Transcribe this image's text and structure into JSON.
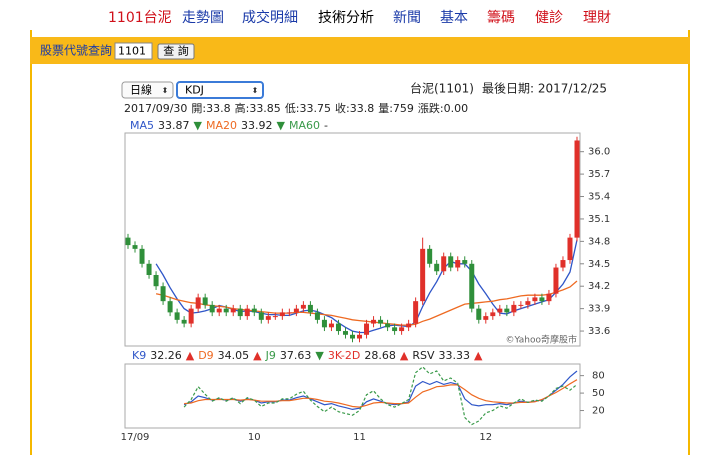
{
  "nav": {
    "stock": "1101台泥",
    "items": [
      "走勢圖",
      "成交明細",
      "技術分析",
      "新聞",
      "基本",
      "籌碼",
      "健診",
      "理財"
    ],
    "active": 2
  },
  "search": {
    "label": "股票代號查詢",
    "input": "1101",
    "button": "查 詢"
  },
  "controls": {
    "period": "日線",
    "indicator": "KDJ",
    "stock_name": "台泥(1101)",
    "last_date": "最後日期: 2017/12/25"
  },
  "chart_data": [
    {
      "type": "candlestick",
      "ohlc_header": [
        "2017/09/30",
        "開:33.8",
        "高:33.85",
        "低:33.75",
        "收:33.8",
        "量:759",
        "漲跌:0.00"
      ],
      "watermark": "©Yahoo奇摩股市",
      "up_color": "#e0302a",
      "down_color": "#2f8f3a",
      "open": [
        34.85,
        34.75,
        34.7,
        34.5,
        34.35,
        34.2,
        34.0,
        33.85,
        33.75,
        33.7,
        33.9,
        34.05,
        33.95,
        33.85,
        33.9,
        33.85,
        33.9,
        33.8,
        33.9,
        33.85,
        33.75,
        33.8,
        33.8,
        33.85,
        33.85,
        33.9,
        33.95,
        33.85,
        33.75,
        33.65,
        33.7,
        33.6,
        33.55,
        33.5,
        33.55,
        33.7,
        33.75,
        33.7,
        33.65,
        33.6,
        33.65,
        33.7,
        34.0,
        34.7,
        34.5,
        34.4,
        34.6,
        34.45,
        34.55,
        34.5,
        33.9,
        33.75,
        33.8,
        33.85,
        33.9,
        33.85,
        33.95,
        33.95,
        34.0,
        34.05,
        34.0,
        34.1,
        34.45,
        34.55,
        34.85
      ],
      "high": [
        34.9,
        34.8,
        34.75,
        34.55,
        34.4,
        34.25,
        34.05,
        33.9,
        33.8,
        33.95,
        34.1,
        34.1,
        34.0,
        33.95,
        33.95,
        33.95,
        33.95,
        33.95,
        33.95,
        33.9,
        33.85,
        33.85,
        33.9,
        33.9,
        33.95,
        34.0,
        34.0,
        33.9,
        33.8,
        33.75,
        33.75,
        33.65,
        33.6,
        33.6,
        33.75,
        33.8,
        33.8,
        33.75,
        33.7,
        33.7,
        33.75,
        34.05,
        34.85,
        34.75,
        34.55,
        34.65,
        34.65,
        34.6,
        34.6,
        34.55,
        33.95,
        33.85,
        33.9,
        33.95,
        33.95,
        34.0,
        34.0,
        34.05,
        34.1,
        34.1,
        34.15,
        34.5,
        34.6,
        34.9,
        36.2
      ],
      "low": [
        34.7,
        34.65,
        34.45,
        34.3,
        34.15,
        33.95,
        33.8,
        33.7,
        33.65,
        33.65,
        33.85,
        33.9,
        33.8,
        33.8,
        33.8,
        33.8,
        33.75,
        33.75,
        33.8,
        33.7,
        33.7,
        33.75,
        33.75,
        33.8,
        33.8,
        33.85,
        33.8,
        33.7,
        33.6,
        33.6,
        33.55,
        33.5,
        33.45,
        33.45,
        33.5,
        33.65,
        33.65,
        33.6,
        33.55,
        33.55,
        33.6,
        33.65,
        33.95,
        34.45,
        34.35,
        34.35,
        34.4,
        34.4,
        34.45,
        33.85,
        33.7,
        33.7,
        33.75,
        33.8,
        33.8,
        33.8,
        33.9,
        33.9,
        33.95,
        33.95,
        33.95,
        34.05,
        34.4,
        34.5,
        34.8
      ],
      "close": [
        34.75,
        34.7,
        34.5,
        34.35,
        34.2,
        34.0,
        33.85,
        33.75,
        33.7,
        33.9,
        34.05,
        33.95,
        33.85,
        33.9,
        33.85,
        33.9,
        33.8,
        33.9,
        33.85,
        33.75,
        33.8,
        33.8,
        33.85,
        33.85,
        33.9,
        33.95,
        33.85,
        33.75,
        33.65,
        33.7,
        33.6,
        33.55,
        33.5,
        33.55,
        33.7,
        33.75,
        33.7,
        33.65,
        33.6,
        33.65,
        33.7,
        34.0,
        34.7,
        34.5,
        34.4,
        34.6,
        34.45,
        34.55,
        34.5,
        33.9,
        33.75,
        33.8,
        33.85,
        33.9,
        33.85,
        33.95,
        33.95,
        34.0,
        34.05,
        34.0,
        34.1,
        34.45,
        34.55,
        34.85,
        36.15
      ],
      "series": [
        {
          "name": "MA5",
          "color": "#2f56c8",
          "legend_value": "33.87",
          "legend_arrow": "▼",
          "values": [
            null,
            null,
            null,
            null,
            34.5,
            34.35,
            34.18,
            34.03,
            33.9,
            33.84,
            33.85,
            33.87,
            33.9,
            33.94,
            33.92,
            33.89,
            33.86,
            33.87,
            33.86,
            33.84,
            33.82,
            33.82,
            33.81,
            33.81,
            33.84,
            33.87,
            33.88,
            33.86,
            33.82,
            33.78,
            33.71,
            33.65,
            33.6,
            33.58,
            33.58,
            33.61,
            33.64,
            33.67,
            33.68,
            33.67,
            33.66,
            33.72,
            33.93,
            34.11,
            34.26,
            34.44,
            34.53,
            34.5,
            34.5,
            34.4,
            34.23,
            34.1,
            33.96,
            33.84,
            33.83,
            33.87,
            33.9,
            33.93,
            33.96,
            33.99,
            34.02,
            34.12,
            34.23,
            34.39,
            34.82
          ]
        },
        {
          "name": "MA20",
          "color": "#ee6a22",
          "legend_value": "33.92",
          "legend_arrow": "▼",
          "values": [
            null,
            null,
            null,
            null,
            34.1,
            34.08,
            34.05,
            34.02,
            34.0,
            33.98,
            33.97,
            33.95,
            33.94,
            33.93,
            33.92,
            33.9,
            33.89,
            33.88,
            33.87,
            33.86,
            33.85,
            33.84,
            33.84,
            33.84,
            33.85,
            33.85,
            33.84,
            33.83,
            33.82,
            33.81,
            33.79,
            33.77,
            33.75,
            33.74,
            33.73,
            33.72,
            33.71,
            33.7,
            33.69,
            33.68,
            33.68,
            33.69,
            33.73,
            33.76,
            33.8,
            33.84,
            33.88,
            33.92,
            33.96,
            33.97,
            33.98,
            33.99,
            34.0,
            34.02,
            34.03,
            34.05,
            34.07,
            34.08,
            34.08,
            34.08,
            34.09,
            34.12,
            34.15,
            34.19,
            34.27
          ]
        },
        {
          "name": "MA60",
          "color": "#3a9a4a",
          "legend_value": "-"
        }
      ],
      "ylim": [
        33.4,
        36.25
      ],
      "yticks": [
        33.6,
        33.9,
        34.2,
        34.5,
        34.8,
        35.1,
        35.4,
        35.7,
        {
          "value": 36.0,
          "label": "36.0"
        }
      ]
    },
    {
      "type": "line",
      "categories": [
        null,
        "17/09",
        null,
        null,
        null,
        null,
        null,
        null,
        null,
        null,
        null,
        null,
        null,
        null,
        null,
        null,
        null,
        null,
        "10",
        null,
        null,
        null,
        null,
        null,
        null,
        null,
        null,
        null,
        null,
        null,
        null,
        null,
        null,
        "11",
        null,
        null,
        null,
        null,
        null,
        null,
        null,
        null,
        null,
        null,
        null,
        null,
        null,
        null,
        null,
        null,
        null,
        "12",
        null,
        null,
        null,
        null,
        null,
        null,
        null,
        null,
        null,
        null,
        null,
        null,
        null
      ],
      "series": [
        {
          "name": "K9",
          "color": "#2f56c8",
          "legend_value": "32.26",
          "legend_arrow": "▲",
          "values": [
            null,
            null,
            null,
            null,
            null,
            null,
            null,
            null,
            30,
            35,
            45,
            42,
            38,
            40,
            38,
            40,
            36,
            40,
            38,
            33,
            35,
            35,
            38,
            38,
            42,
            45,
            40,
            35,
            30,
            32,
            28,
            25,
            22,
            24,
            35,
            40,
            36,
            32,
            30,
            32,
            35,
            62,
            70,
            65,
            70,
            65,
            68,
            65,
            40,
            30,
            28,
            30,
            30,
            32,
            30,
            33,
            36,
            34,
            36,
            38,
            45,
            55,
            65,
            78,
            88
          ]
        },
        {
          "name": "D9",
          "color": "#ee6a22",
          "legend_value": "34.05",
          "legend_arrow": "▲",
          "values": [
            null,
            null,
            null,
            null,
            null,
            null,
            null,
            null,
            32,
            33,
            37,
            39,
            39,
            39,
            39,
            39,
            38,
            39,
            38,
            36,
            36,
            36,
            37,
            37,
            39,
            41,
            41,
            39,
            36,
            35,
            33,
            30,
            27,
            26,
            29,
            33,
            34,
            33,
            32,
            32,
            33,
            43,
            52,
            56,
            61,
            62,
            64,
            64,
            56,
            47,
            41,
            37,
            35,
            34,
            33,
            33,
            34,
            34,
            35,
            39,
            45,
            51,
            58,
            66,
            73
          ]
        },
        {
          "name": "J9",
          "color": "#3a9a4a",
          "dashed": true,
          "legend_value": "37.63",
          "legend_arrow": "▼",
          "values": [
            null,
            null,
            null,
            null,
            null,
            null,
            null,
            null,
            26,
            39,
            61,
            48,
            36,
            42,
            36,
            42,
            32,
            42,
            38,
            27,
            33,
            33,
            40,
            40,
            48,
            53,
            38,
            27,
            18,
            26,
            18,
            15,
            12,
            20,
            47,
            54,
            40,
            30,
            26,
            32,
            39,
            85,
            95,
            83,
            88,
            71,
            76,
            67,
            8,
            -4,
            2,
            16,
            20,
            28,
            24,
            33,
            40,
            34,
            38,
            36,
            45,
            58,
            62,
            55,
            65
          ]
        }
      ],
      "legend_extra": [
        {
          "name": "3K-2D",
          "color": "#e0302a",
          "legend_value": "28.68",
          "legend_arrow": "▲"
        },
        {
          "name": "RSV",
          "color": "#222222",
          "legend_value": "33.33",
          "legend_arrow": "▲"
        }
      ],
      "ylim": [
        -10,
        100
      ],
      "yticks": [
        20,
        50,
        80
      ]
    }
  ]
}
